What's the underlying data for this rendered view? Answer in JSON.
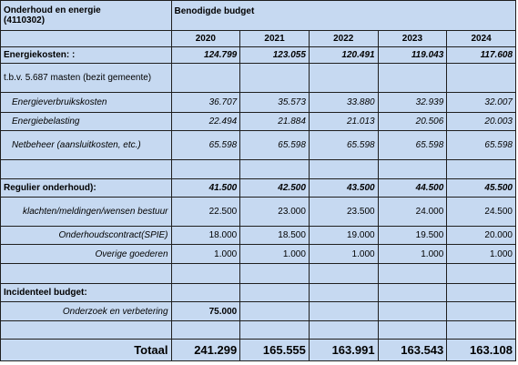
{
  "header": {
    "title_line1": "Onderhoud en energie",
    "title_line2": "(4110302)",
    "budget_label": "Benodigde budget",
    "years": [
      "2020",
      "2021",
      "2022",
      "2023",
      "2024"
    ]
  },
  "energiekosten": {
    "label": "Energiekosten: :",
    "values": [
      "124.799",
      "123.055",
      "120.491",
      "119.043",
      "117.608"
    ],
    "note": "t.b.v. 5.687 masten (bezit gemeente)",
    "rows": [
      {
        "label": "Energieverbruikskosten",
        "values": [
          "36.707",
          "35.573",
          "33.880",
          "32.939",
          "32.007"
        ]
      },
      {
        "label": "Energiebelasting",
        "values": [
          "22.494",
          "21.884",
          "21.013",
          "20.506",
          "20.003"
        ]
      },
      {
        "label": "Netbeheer (aansluitkosten, etc.)",
        "values": [
          "65.598",
          "65.598",
          "65.598",
          "65.598",
          "65.598"
        ]
      }
    ]
  },
  "regulier": {
    "label": "Regulier onderhoud):",
    "values": [
      "41.500",
      "42.500",
      "43.500",
      "44.500",
      "45.500"
    ],
    "rows": [
      {
        "label": "klachten/meldingen/wensen bestuur",
        "values": [
          "22.500",
          "23.000",
          "23.500",
          "24.000",
          "24.500"
        ]
      },
      {
        "label": "Onderhoudscontract(SPIE)",
        "values": [
          "18.000",
          "18.500",
          "19.000",
          "19.500",
          "20.000"
        ]
      },
      {
        "label": "Overige goederen",
        "values": [
          "1.000",
          "1.000",
          "1.000",
          "1.000",
          "1.000"
        ]
      }
    ]
  },
  "incidenteel": {
    "label": "Incidenteel budget:",
    "rows": [
      {
        "label": "Onderzoek en verbetering",
        "values": [
          "75.000",
          "",
          "",
          "",
          ""
        ]
      }
    ]
  },
  "totaal": {
    "label": "Totaal",
    "values": [
      "241.299",
      "165.555",
      "163.991",
      "163.543",
      "163.108"
    ]
  }
}
